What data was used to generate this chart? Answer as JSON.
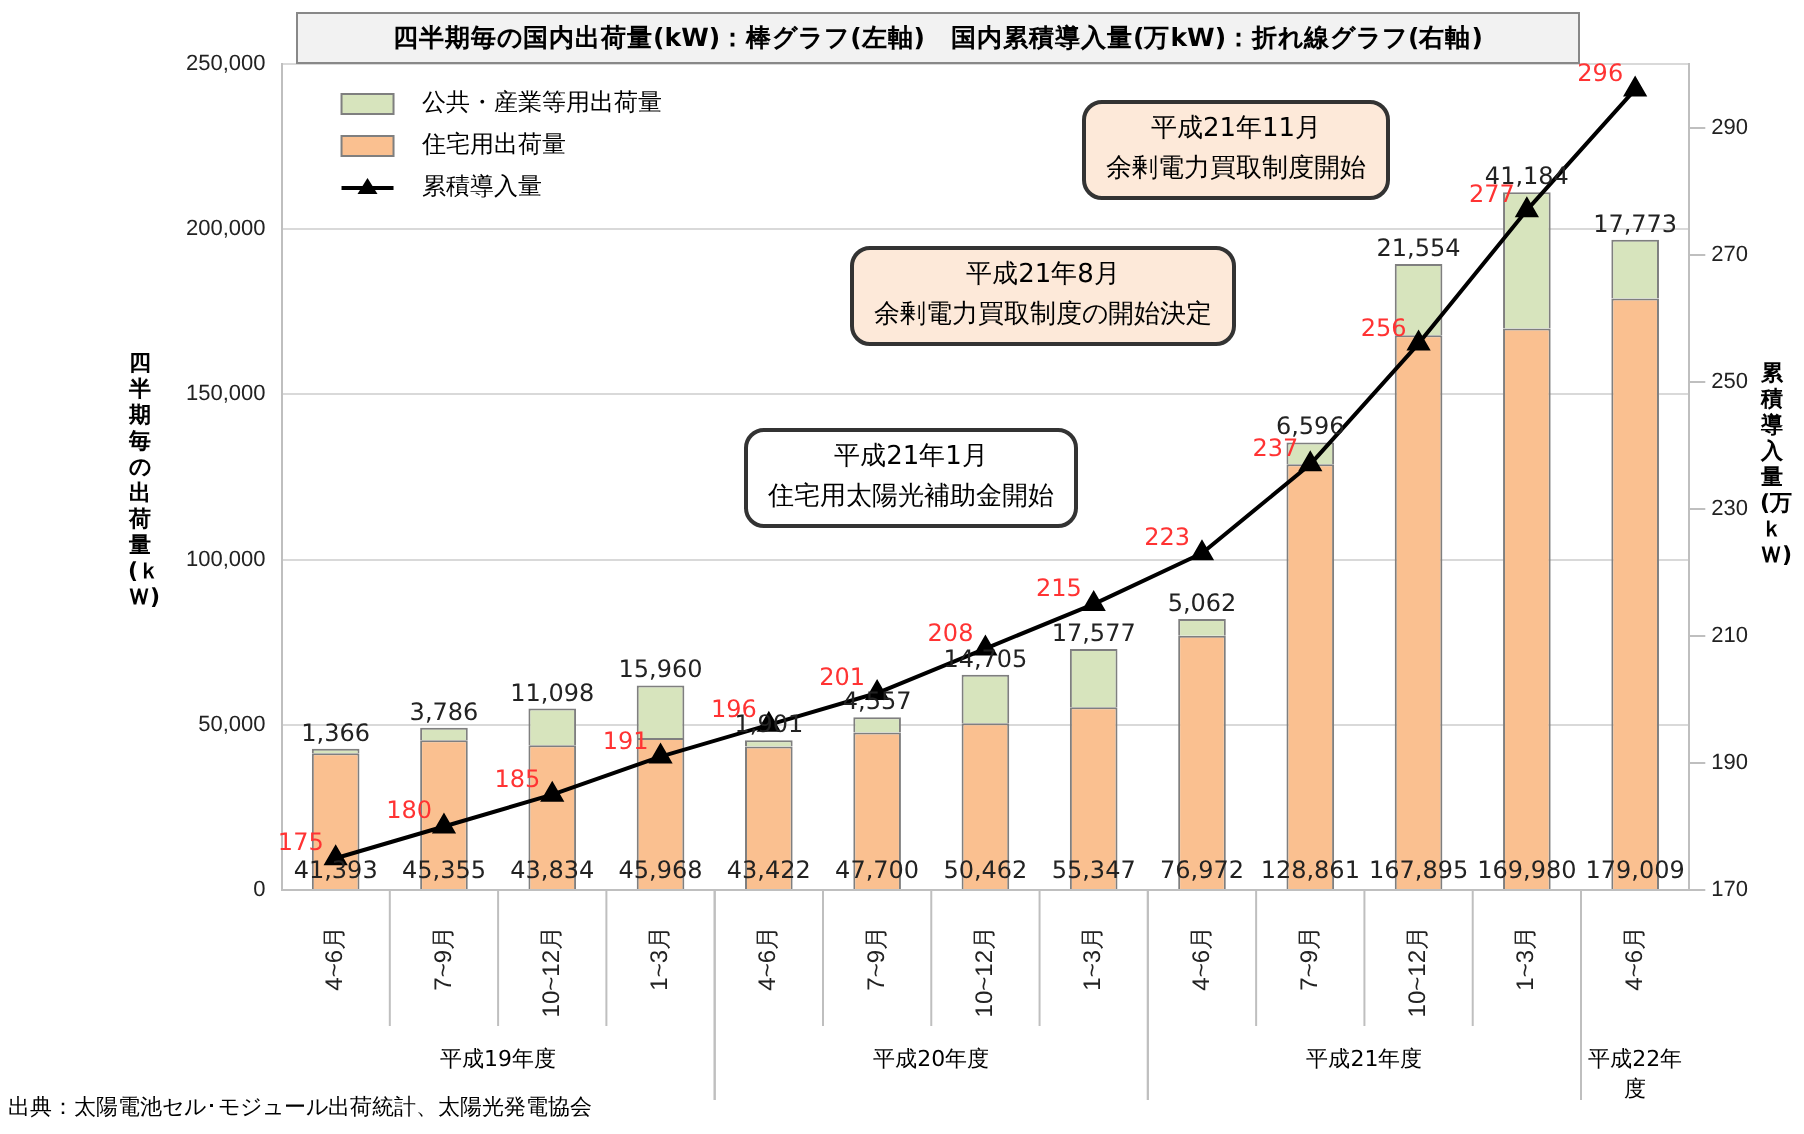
{
  "chart_data": {
    "type": "bar",
    "title": "四半期毎の国内出荷量(kW)：棒グラフ(左軸)　国内累積導入量(万kW)：折れ線グラフ(右軸)",
    "ylabel": "四半期毎の出荷量(ｋＷ)",
    "y2label": "累積導入量(万ｋＷ)",
    "categories": [
      "4~6月",
      "7~9月",
      "10~12月",
      "1~3月",
      "4~6月",
      "7~9月",
      "10~12月",
      "1~3月",
      "4~6月",
      "7~9月",
      "10~12月",
      "1~3月",
      "4~6月"
    ],
    "stacked": true,
    "series": [
      {
        "name": "住宅用出荷量",
        "color": "#fac090",
        "values": [
          41393,
          45355,
          43834,
          45968,
          43422,
          47700,
          50462,
          55347,
          76972,
          128861,
          167895,
          169980,
          179009
        ],
        "value_labels": [
          "41,393",
          "45,355",
          "43,834",
          "45,968",
          "43,422",
          "47,700",
          "50,462",
          "55,347",
          "76,972",
          "128,861",
          "167,895",
          "169,980",
          "179,009"
        ]
      },
      {
        "name": "公共・産業等用出荷量",
        "color": "#d7e4bd",
        "values": [
          1366,
          3786,
          11098,
          15960,
          1901,
          4557,
          14705,
          17577,
          5062,
          6596,
          21554,
          41184,
          17773
        ],
        "value_labels": [
          "1,366",
          "3,786",
          "11,098",
          "15,960",
          "1,901",
          "4,557",
          "14,705",
          "17,577",
          "5,062",
          "6,596",
          "21,554",
          "41,184",
          "17,773"
        ]
      },
      {
        "name": "累積導入量",
        "type": "line",
        "axis": "y2",
        "color": "#000000",
        "marker": "triangle",
        "values": [
          175,
          180,
          185,
          191,
          196,
          201,
          208,
          215,
          223,
          237,
          256,
          277,
          296
        ],
        "value_labels": [
          "175",
          "180",
          "185",
          "191",
          "196",
          "201",
          "208",
          "215",
          "223",
          "237",
          "256",
          "277",
          "296"
        ]
      }
    ],
    "ylim": [
      0,
      250000
    ],
    "yticks": [
      0,
      {
        "value": 50000,
        "label": "50,000"
      },
      {
        "value": 100000,
        "label": "100,000"
      },
      {
        "value": 150000,
        "label": "150,000"
      },
      {
        "value": 200000,
        "label": "200,000"
      },
      {
        "value": 250000,
        "label": "250,000"
      }
    ],
    "y2lim": [
      170,
      300
    ],
    "y2ticks": [
      170,
      190,
      210,
      230,
      250,
      270,
      290
    ],
    "grid": "y",
    "legend": "top left",
    "annotations": [
      "平成21年1月",
      "住宅用太陽光補助金開始",
      "平成21年8月",
      "余剰電力買取制度の開始決定",
      "平成21年11月",
      "余剰電力買取制度開始",
      "平成19年度",
      "平成20年度",
      "平成21年度",
      "平成22年度",
      "出典：太陽電池セル･モジュール出荷統計、太陽光発電協会"
    ]
  }
}
